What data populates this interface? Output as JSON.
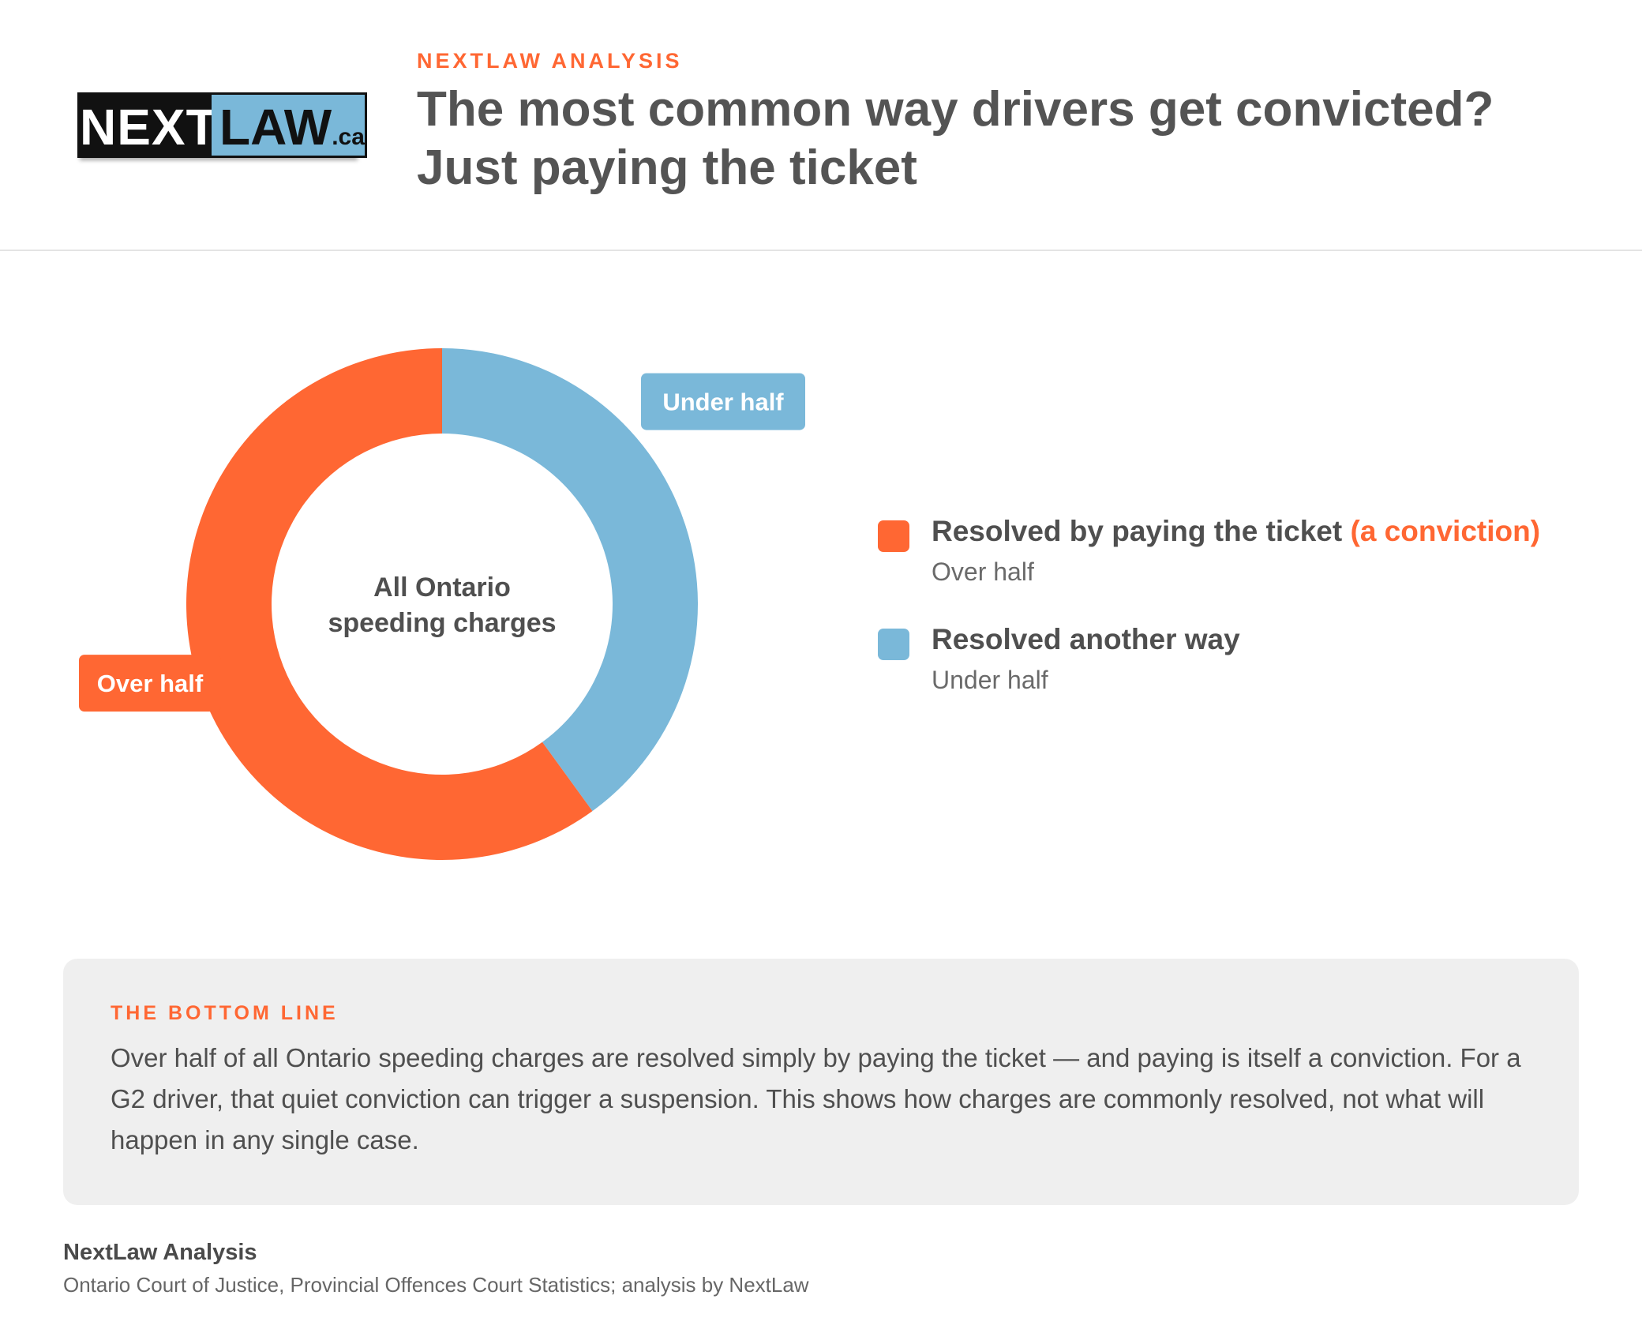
{
  "header": {
    "logo": {
      "left_text": "NEXT",
      "right_text": "LAW",
      "suffix": ".ca"
    },
    "eyebrow": "NEXTLAW ANALYSIS",
    "title": "The most common way drivers get convicted? Just paying the ticket"
  },
  "chart_data": {
    "type": "pie",
    "center_label_lines": [
      "All Ontario",
      "speeding charges"
    ],
    "series": [
      {
        "name": "Resolved by paying the ticket (a conviction)",
        "label": "Over half",
        "value": 0.6,
        "color": "#ff6733"
      },
      {
        "name": "Resolved another way",
        "label": "Under half",
        "value": 0.4,
        "color": "#7ab8d9"
      }
    ]
  },
  "legend": {
    "items": [
      {
        "label": "Resolved by paying the ticket",
        "accent": "(a conviction)",
        "value": "Over half",
        "color": "#ff6733"
      },
      {
        "label": "Resolved another way",
        "accent": "",
        "value": "Under half",
        "color": "#7ab8d9"
      }
    ]
  },
  "bottom_line": {
    "eyebrow": "THE BOTTOM LINE",
    "text": "Over half of all Ontario speeding charges are resolved simply by paying the ticket — and paying is itself a conviction. For a G2 driver, that quiet conviction can trigger a suspension. This shows how charges are commonly resolved, not what will happen in any single case."
  },
  "footer": {
    "title": "NextLaw Analysis",
    "source": "Ontario Court of Justice, Provincial Offences Court Statistics; analysis by NextLaw"
  }
}
